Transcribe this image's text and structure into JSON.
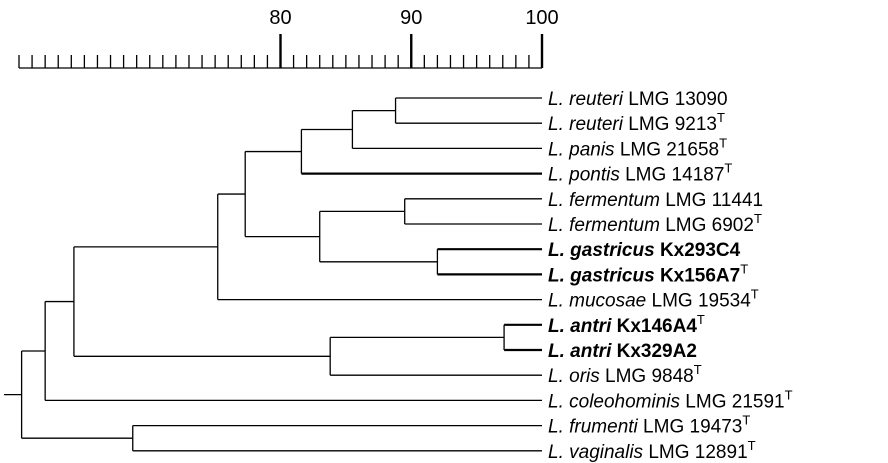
{
  "scale": {
    "min": 60,
    "max": 100,
    "major_labels": [
      80,
      90,
      100
    ],
    "minor_step": 1
  },
  "taxa": [
    {
      "id": "t1",
      "genus": "L.",
      "species": "reuteri",
      "strain": "LMG 13090",
      "type_strain": false,
      "bold": false
    },
    {
      "id": "t2",
      "genus": "L.",
      "species": "reuteri",
      "strain": "LMG 9213",
      "type_strain": true,
      "bold": false
    },
    {
      "id": "t3",
      "genus": "L.",
      "species": "panis",
      "strain": "LMG 21658",
      "type_strain": true,
      "bold": false
    },
    {
      "id": "t4",
      "genus": "L.",
      "species": "pontis",
      "strain": "LMG 14187",
      "type_strain": true,
      "bold": false
    },
    {
      "id": "t5",
      "genus": "L.",
      "species": "fermentum",
      "strain": "LMG 11441",
      "type_strain": false,
      "bold": false
    },
    {
      "id": "t6",
      "genus": "L.",
      "species": "fermentum",
      "strain": "LMG 6902",
      "type_strain": true,
      "bold": false
    },
    {
      "id": "t7",
      "genus": "L.",
      "species": "gastricus",
      "strain": "Kx293C4",
      "type_strain": false,
      "bold": true
    },
    {
      "id": "t8",
      "genus": "L.",
      "species": "gastricus",
      "strain": "Kx156A7",
      "type_strain": true,
      "bold": true
    },
    {
      "id": "t9",
      "genus": "L.",
      "species": "mucosae",
      "strain": "LMG 19534",
      "type_strain": true,
      "bold": false
    },
    {
      "id": "t10",
      "genus": "L.",
      "species": "antri",
      "strain": "Kx146A4",
      "type_strain": true,
      "bold": true
    },
    {
      "id": "t11",
      "genus": "L.",
      "species": "antri",
      "strain": "Kx329A2",
      "type_strain": false,
      "bold": true
    },
    {
      "id": "t12",
      "genus": "L.",
      "species": "oris",
      "strain": "LMG 9848",
      "type_strain": true,
      "bold": false
    },
    {
      "id": "t13",
      "genus": "L.",
      "species": "coleohominis",
      "strain": "LMG 21591",
      "type_strain": true,
      "bold": false
    },
    {
      "id": "t14",
      "genus": "L.",
      "species": "frumenti",
      "strain": "LMG 19473",
      "type_strain": true,
      "bold": false
    },
    {
      "id": "t15",
      "genus": "L.",
      "species": "vaginalis",
      "strain": "LMG 12891",
      "type_strain": true,
      "bold": false
    }
  ],
  "type_marker": "T",
  "clusters": [
    {
      "id": "c1",
      "similarity": 88.8,
      "children": [
        "t1",
        "t2"
      ]
    },
    {
      "id": "c2",
      "similarity": 85.5,
      "children": [
        "c1",
        "t3"
      ]
    },
    {
      "id": "c3",
      "similarity": 81.6,
      "children": [
        "c2",
        "t4"
      ],
      "thick_children": [
        "t4"
      ]
    },
    {
      "id": "c4",
      "similarity": 89.5,
      "children": [
        "t5",
        "t6"
      ]
    },
    {
      "id": "c5",
      "similarity": 92.0,
      "children": [
        "t7",
        "t8"
      ],
      "thick_children": [
        "t7",
        "t8"
      ]
    },
    {
      "id": "c6",
      "similarity": 83.0,
      "children": [
        "c4",
        "c5"
      ]
    },
    {
      "id": "c7",
      "similarity": 77.3,
      "children": [
        "c3",
        "c6"
      ]
    },
    {
      "id": "c8",
      "similarity": 75.2,
      "children": [
        "c7",
        "t9"
      ]
    },
    {
      "id": "c9",
      "similarity": 97.1,
      "children": [
        "t10",
        "t11"
      ],
      "thick_children": [
        "t10",
        "t11"
      ]
    },
    {
      "id": "c10",
      "similarity": 83.8,
      "children": [
        "c9",
        "t12"
      ]
    },
    {
      "id": "c11",
      "similarity": 64.2,
      "children": [
        "c8",
        "c10"
      ]
    },
    {
      "id": "c12",
      "similarity": 62.0,
      "children": [
        "c11",
        "t13"
      ]
    },
    {
      "id": "c13",
      "similarity": 68.7,
      "children": [
        "t14",
        "t15"
      ]
    },
    {
      "id": "c14",
      "similarity": 60.2,
      "children": [
        "c12",
        "c13"
      ]
    }
  ]
}
